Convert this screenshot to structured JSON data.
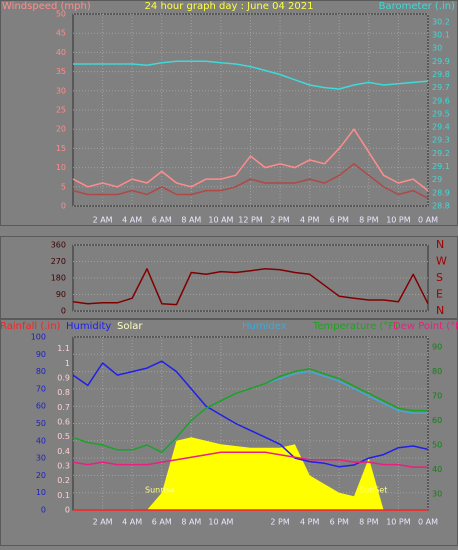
{
  "chart_data": [
    {
      "type": "line",
      "title": "24 hour graph day : June 04 2021",
      "y_label": "Windspeed (mph)",
      "y2_label": "Barometer (.in)",
      "x": [
        0,
        1,
        2,
        3,
        4,
        5,
        6,
        7,
        8,
        9,
        10,
        11,
        12,
        13,
        14,
        15,
        16,
        17,
        18,
        19,
        20,
        21,
        22,
        23,
        24
      ],
      "xlim": [
        0,
        24
      ],
      "xticks": [
        {
          "value": 2,
          "label": "2 AM"
        },
        {
          "value": 4,
          "label": "4 AM"
        },
        {
          "value": 6,
          "label": "6 AM"
        },
        {
          "value": 8,
          "label": "8 AM"
        },
        {
          "value": 10,
          "label": "10 AM"
        },
        {
          "value": 12,
          "label": "12 PM"
        },
        {
          "value": 14,
          "label": "2 PM"
        },
        {
          "value": 16,
          "label": "4 PM"
        },
        {
          "value": 18,
          "label": "6 PM"
        },
        {
          "value": 20,
          "label": "8 PM"
        },
        {
          "value": 22,
          "label": "10 PM"
        },
        {
          "value": 24,
          "label": "0 AM"
        }
      ],
      "ylim": [
        0,
        50
      ],
      "yticks": [
        0,
        5,
        10,
        15,
        20,
        25,
        30,
        35,
        40,
        45,
        50
      ],
      "y2lim": [
        28.8,
        30.26
      ],
      "y2ticks": [
        28.8,
        28.9,
        29,
        29.1,
        29.2,
        29.3,
        29.4,
        29.5,
        29.6,
        29.7,
        29.8,
        29.9,
        30,
        30.1,
        30.2
      ],
      "grid": true,
      "series": [
        {
          "color": "#ff8c8c",
          "values": [
            7,
            5,
            6,
            5,
            7,
            6,
            9,
            6,
            5,
            7,
            7,
            8,
            13,
            10,
            11,
            10,
            12,
            11,
            15,
            20,
            14,
            8,
            6,
            7,
            4
          ]
        },
        {
          "color": "#b04848",
          "values": [
            4,
            3,
            3,
            3,
            4,
            3,
            5,
            3,
            3,
            4,
            4,
            5,
            7,
            6,
            6,
            6,
            7,
            6,
            8,
            11,
            8,
            5,
            3,
            4,
            2
          ]
        },
        {
          "color": "#40d8d8",
          "axis": "y2",
          "values": [
            29.88,
            29.88,
            29.88,
            29.88,
            29.88,
            29.87,
            29.89,
            29.9,
            29.9,
            29.9,
            29.89,
            29.88,
            29.86,
            29.83,
            29.8,
            29.76,
            29.72,
            29.7,
            29.69,
            29.72,
            29.74,
            29.72,
            29.73,
            29.74,
            29.75
          ]
        }
      ]
    },
    {
      "type": "line",
      "x": [
        0,
        1,
        2,
        3,
        4,
        5,
        6,
        7,
        8,
        9,
        10,
        11,
        12,
        13,
        14,
        15,
        16,
        17,
        18,
        19,
        20,
        21,
        22,
        23,
        24
      ],
      "xlim": [
        0,
        24
      ],
      "ylim": [
        0,
        360
      ],
      "yticks": [
        0,
        90,
        180,
        270,
        360
      ],
      "y2lim": [
        0,
        360
      ],
      "y2ticks": [
        {
          "value": 0,
          "label": "N"
        },
        {
          "value": 90,
          "label": "E"
        },
        {
          "value": 180,
          "label": "S"
        },
        {
          "value": 270,
          "label": "W"
        },
        {
          "value": 360,
          "label": "N"
        }
      ],
      "grid": true,
      "series": [
        {
          "color": "#800000",
          "values": [
            50,
            40,
            45,
            45,
            70,
            230,
            40,
            35,
            210,
            200,
            215,
            210,
            220,
            230,
            225,
            210,
            200,
            140,
            80,
            70,
            60,
            60,
            50,
            200,
            40
          ]
        }
      ]
    },
    {
      "type": "line",
      "x": [
        0,
        1,
        2,
        3,
        4,
        5,
        6,
        7,
        8,
        9,
        10,
        11,
        12,
        13,
        14,
        15,
        16,
        17,
        18,
        19,
        20,
        21,
        22,
        23,
        24
      ],
      "xlim": [
        0,
        24
      ],
      "xticks": [
        {
          "value": 2,
          "label": "2 AM"
        },
        {
          "value": 4,
          "label": "4 AM"
        },
        {
          "value": 6,
          "label": "6 AM"
        },
        {
          "value": 8,
          "label": "8 AM"
        },
        {
          "value": 10,
          "label": "10 AM"
        },
        {
          "value": 14,
          "label": "2 PM"
        },
        {
          "value": 16,
          "label": "4 PM"
        },
        {
          "value": 18,
          "label": "6 PM"
        },
        {
          "value": 20,
          "label": "8 PM"
        },
        {
          "value": 22,
          "label": "10 PM"
        },
        {
          "value": 24,
          "label": "0 AM"
        }
      ],
      "ylim": [
        0,
        100
      ],
      "yticks": [
        0,
        10,
        20,
        30,
        40,
        50,
        60,
        70,
        80,
        90,
        100
      ],
      "y2lim": [
        23.5,
        94
      ],
      "y2ticks": [
        30,
        40,
        50,
        60,
        70,
        80,
        90
      ],
      "y3lim": [
        0,
        1.18
      ],
      "y3ticks": [
        0,
        0.1,
        0.2,
        0.3,
        0.4,
        0.5,
        0.6,
        0.7,
        0.8,
        0.9,
        1,
        1.1
      ],
      "grid": true,
      "annotations": [
        "Sunrise",
        "SunSet"
      ],
      "series": [
        {
          "name": "Rainfall (.in)",
          "color": "#ff2020",
          "axis": "y3",
          "values": [
            0,
            0,
            0,
            0,
            0,
            0,
            0,
            0,
            0,
            0,
            0,
            0,
            0,
            0,
            0,
            0,
            0,
            0,
            0,
            0,
            0,
            0,
            0,
            0,
            0
          ]
        },
        {
          "name": "Humidity",
          "color": "#2020e8",
          "values": [
            78,
            72,
            85,
            78,
            80,
            82,
            86,
            80,
            70,
            60,
            55,
            50,
            46,
            42,
            38,
            30,
            28,
            27,
            25,
            26,
            30,
            32,
            36,
            37,
            35
          ]
        },
        {
          "name": "Solar",
          "color": "#ffff00",
          "style": "area",
          "values": [
            0,
            0,
            0,
            0,
            0,
            0,
            10,
            40,
            42,
            40,
            38,
            37,
            36,
            36,
            36,
            38,
            20,
            15,
            10,
            8,
            30,
            0,
            0,
            0,
            0
          ]
        },
        {
          "name": "Humidex",
          "color": "#40a8d8",
          "axis": "y2",
          "values": [
            53,
            51,
            50,
            48,
            48,
            50,
            47,
            53,
            60,
            65,
            68,
            71,
            73,
            75,
            77,
            79,
            80,
            78,
            76,
            73,
            70,
            67,
            64,
            63,
            63
          ]
        },
        {
          "name": "Temperature (°F)",
          "color": "#20a020",
          "axis": "y2",
          "values": [
            53,
            51,
            50,
            48,
            48,
            50,
            47,
            53,
            60,
            65,
            68,
            71,
            73,
            75,
            78,
            80,
            81,
            79,
            77,
            74,
            71,
            68,
            65,
            64,
            64
          ]
        },
        {
          "name": "Dew Point (°F",
          "color": "#e82080",
          "axis": "y2",
          "values": [
            43,
            42,
            43,
            42,
            42,
            42,
            43,
            44,
            45,
            46,
            47,
            47,
            47,
            47,
            46,
            45,
            44,
            44,
            44,
            43,
            43,
            42,
            42,
            41,
            41
          ]
        }
      ]
    }
  ]
}
